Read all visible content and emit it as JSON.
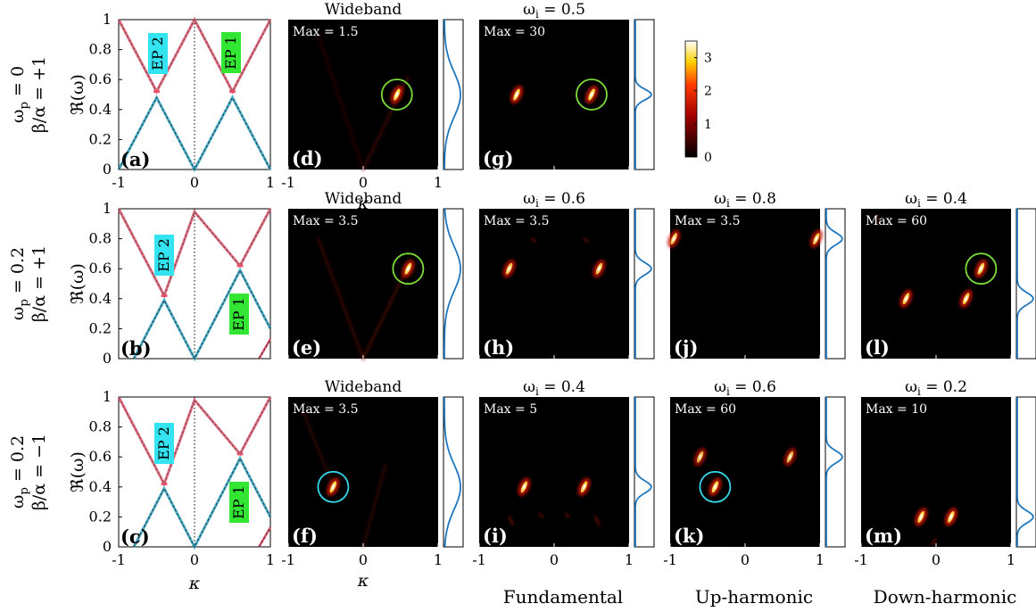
{
  "row_labels": [
    {
      "line1": "ω_p = 0",
      "line2": "β/α = +1"
    },
    {
      "line1": "ω_p = 0.2",
      "line2": "β/α = +1"
    },
    {
      "line1": "ω_p = 0.2",
      "line2": "β/α = −1"
    }
  ],
  "column_labels": [
    "Fundamental",
    "Up-harmonic",
    "Down-harmonic"
  ],
  "axis_labels": {
    "y": "ℜ(ω)",
    "x": "κ"
  },
  "colorbar": {
    "ticks": [
      "0",
      "1",
      "2",
      "3"
    ],
    "range": [
      0,
      3.5
    ],
    "colormap": "hot"
  },
  "colors": {
    "red_band": "#e8506a",
    "blue_band": "#2aa6c8",
    "green_circle": "#7ddc3a",
    "cyan_circle": "#35d6e8",
    "spectrum_line": "#1f77c0",
    "ep2_box": "#33e3f0",
    "ep1_box": "#33e633"
  },
  "chart_data": [
    {
      "type": "line",
      "panel": "(a)",
      "xlim": [
        -1,
        1
      ],
      "ylim": [
        0,
        1
      ],
      "xticks": [
        "-1",
        "0",
        "1"
      ],
      "yticks": [
        "0",
        "0.2",
        "0.4",
        "0.6",
        "0.8",
        "1"
      ],
      "annotations": [
        "EP 2",
        "EP 1"
      ]
    },
    {
      "type": "line",
      "panel": "(b)",
      "xlim": [
        -1,
        1
      ],
      "ylim": [
        0,
        1
      ],
      "yticks": [
        "0",
        "0.2",
        "0.4",
        "0.6",
        "0.8",
        "1"
      ],
      "annotations": [
        "EP 2",
        "EP 1"
      ]
    },
    {
      "type": "line",
      "panel": "(c)",
      "xlim": [
        -1,
        1
      ],
      "ylim": [
        0,
        1
      ],
      "xticks": [
        "-1",
        "0",
        "1"
      ],
      "yticks": [
        "0",
        "0.2",
        "0.4",
        "0.6",
        "0.8",
        "1"
      ],
      "annotations": [
        "EP 2",
        "EP 1"
      ],
      "xlabel": "κ"
    },
    {
      "type": "heatmap",
      "panel": "(d)",
      "title": "Wideband",
      "max_label": "Max = 1.5",
      "xlim": [
        -1,
        1
      ],
      "ylim": [
        0,
        1
      ],
      "xticks": [
        "-1",
        "0",
        "1"
      ],
      "xlabel": "κ"
    },
    {
      "type": "heatmap",
      "panel": "(e)",
      "title": "Wideband",
      "max_label": "Max = 3.5"
    },
    {
      "type": "heatmap",
      "panel": "(f)",
      "title": "Wideband",
      "max_label": "Max = 3.5",
      "xticks": [
        "-1",
        "0",
        "1"
      ],
      "xlabel": "κ"
    },
    {
      "type": "heatmap",
      "panel": "(g)",
      "title": "ω_i = 0.5",
      "max_label": "Max = 30"
    },
    {
      "type": "heatmap",
      "panel": "(h)",
      "title": "ω_i = 0.6",
      "max_label": "Max = 3.5"
    },
    {
      "type": "heatmap",
      "panel": "(i)",
      "title": "ω_i = 0.4",
      "max_label": "Max = 5",
      "xticks": [
        "-1",
        "0",
        "1"
      ]
    },
    {
      "type": "heatmap",
      "panel": "(j)",
      "title": "ω_i = 0.8",
      "max_label": "Max = 3.5"
    },
    {
      "type": "heatmap",
      "panel": "(k)",
      "title": "ω_i = 0.6",
      "max_label": "Max = 60",
      "xticks": [
        "-1",
        "0",
        "1"
      ]
    },
    {
      "type": "heatmap",
      "panel": "(l)",
      "title": "ω_i = 0.4",
      "max_label": "Max = 60"
    },
    {
      "type": "heatmap",
      "panel": "(m)",
      "title": "ω_i = 0.2",
      "max_label": "Max = 10",
      "xticks": [
        "-1",
        "0",
        "1"
      ]
    }
  ]
}
